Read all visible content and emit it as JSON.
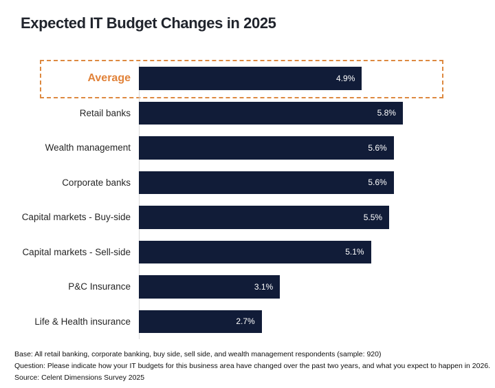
{
  "title": "Expected IT Budget Changes in 2025",
  "chart_data": {
    "type": "bar",
    "orientation": "horizontal",
    "title": "Expected IT Budget Changes in 2025",
    "unit": "%",
    "xlim": [
      0,
      7.8
    ],
    "grid": false,
    "legend": false,
    "bar_color": "#111c38",
    "highlight_color": "#e18239",
    "categories": [
      "Average",
      "Retail banks",
      "Wealth management",
      "Corporate banks",
      "Capital markets - Buy-side",
      "Capital markets - Sell-side",
      "P&C Insurance",
      "Life & Health insurance"
    ],
    "values": [
      4.9,
      5.8,
      5.6,
      5.6,
      5.5,
      5.1,
      3.1,
      2.7
    ],
    "rows": [
      {
        "label": "Average",
        "value": 4.9,
        "value_label": "4.9%",
        "highlighted": true
      },
      {
        "label": "Retail banks",
        "value": 5.8,
        "value_label": "5.8%",
        "highlighted": false
      },
      {
        "label": "Wealth management",
        "value": 5.6,
        "value_label": "5.6%",
        "highlighted": false
      },
      {
        "label": "Corporate banks",
        "value": 5.6,
        "value_label": "5.6%",
        "highlighted": false
      },
      {
        "label": "Capital markets - Buy-side",
        "value": 5.5,
        "value_label": "5.5%",
        "highlighted": false
      },
      {
        "label": "Capital markets - Sell-side",
        "value": 5.1,
        "value_label": "5.1%",
        "highlighted": false
      },
      {
        "label": "P&C Insurance",
        "value": 3.1,
        "value_label": "3.1%",
        "highlighted": false
      },
      {
        "label": "Life & Health insurance",
        "value": 2.7,
        "value_label": "2.7%",
        "highlighted": false
      }
    ]
  },
  "footer": {
    "base": "Base: All retail banking, corporate banking, buy side, sell side, and wealth management respondents (sample: 920)",
    "question": "Question: Please indicate how your IT budgets for this business area have changed over the past two years, and what you expect to happen in 2026.",
    "source": "Source: Celent Dimensions Survey 2025"
  }
}
